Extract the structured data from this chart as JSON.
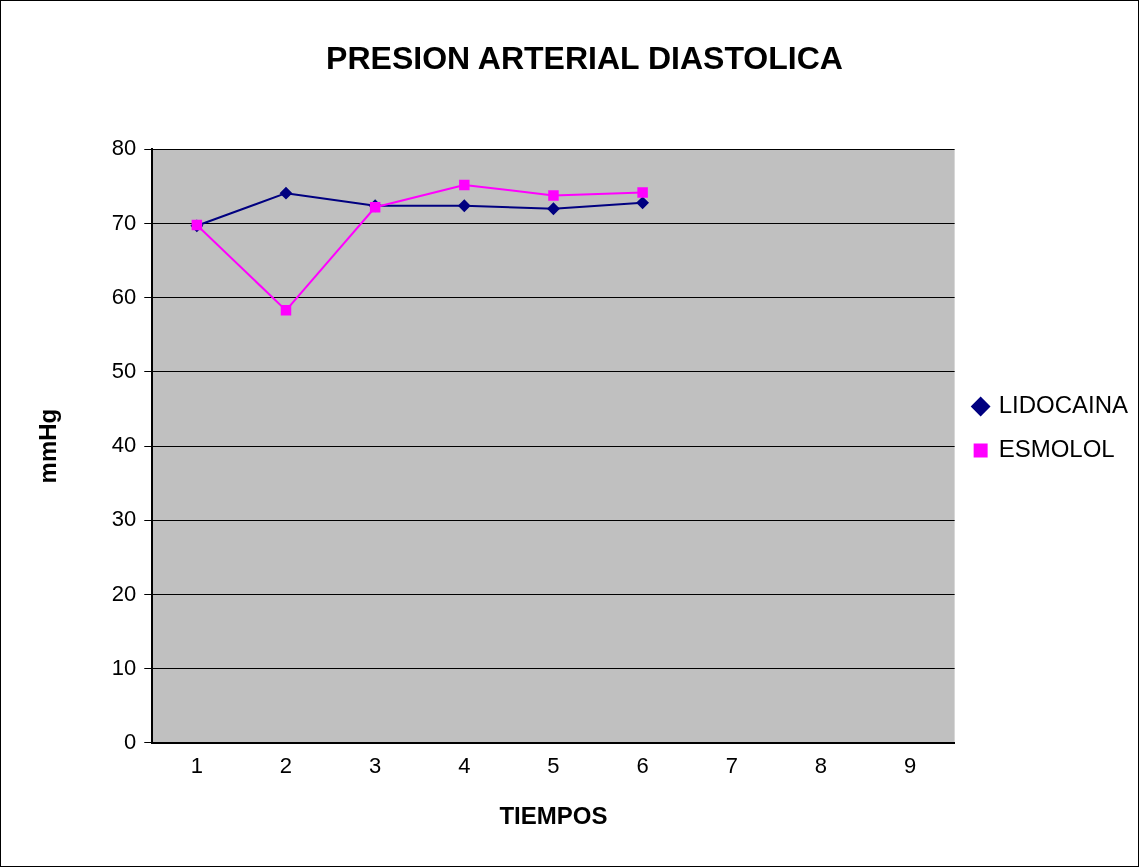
{
  "chart_data": {
    "type": "line",
    "title": "PRESION ARTERIAL DIASTOLICA",
    "xlabel": "TIEMPOS",
    "ylabel": "mmHg",
    "categories": [
      "1",
      "2",
      "3",
      "4",
      "5",
      "6",
      "7",
      "8",
      "9"
    ],
    "series": [
      {
        "name": "LIDOCAINA",
        "color": "#000080",
        "marker": "diamond",
        "values": [
          69.7,
          74.1,
          72.4,
          72.4,
          72.0,
          72.8,
          null,
          null,
          null
        ]
      },
      {
        "name": "ESMOLOL",
        "color": "#ff00ff",
        "marker": "square",
        "values": [
          69.8,
          58.3,
          72.2,
          75.2,
          73.8,
          74.2,
          null,
          null,
          null
        ]
      }
    ],
    "ylim": [
      0,
      80
    ],
    "yticks": [
      0,
      10,
      20,
      30,
      40,
      50,
      60,
      70,
      80
    ],
    "grid": "y",
    "legend": "right",
    "line_style": "solid"
  }
}
